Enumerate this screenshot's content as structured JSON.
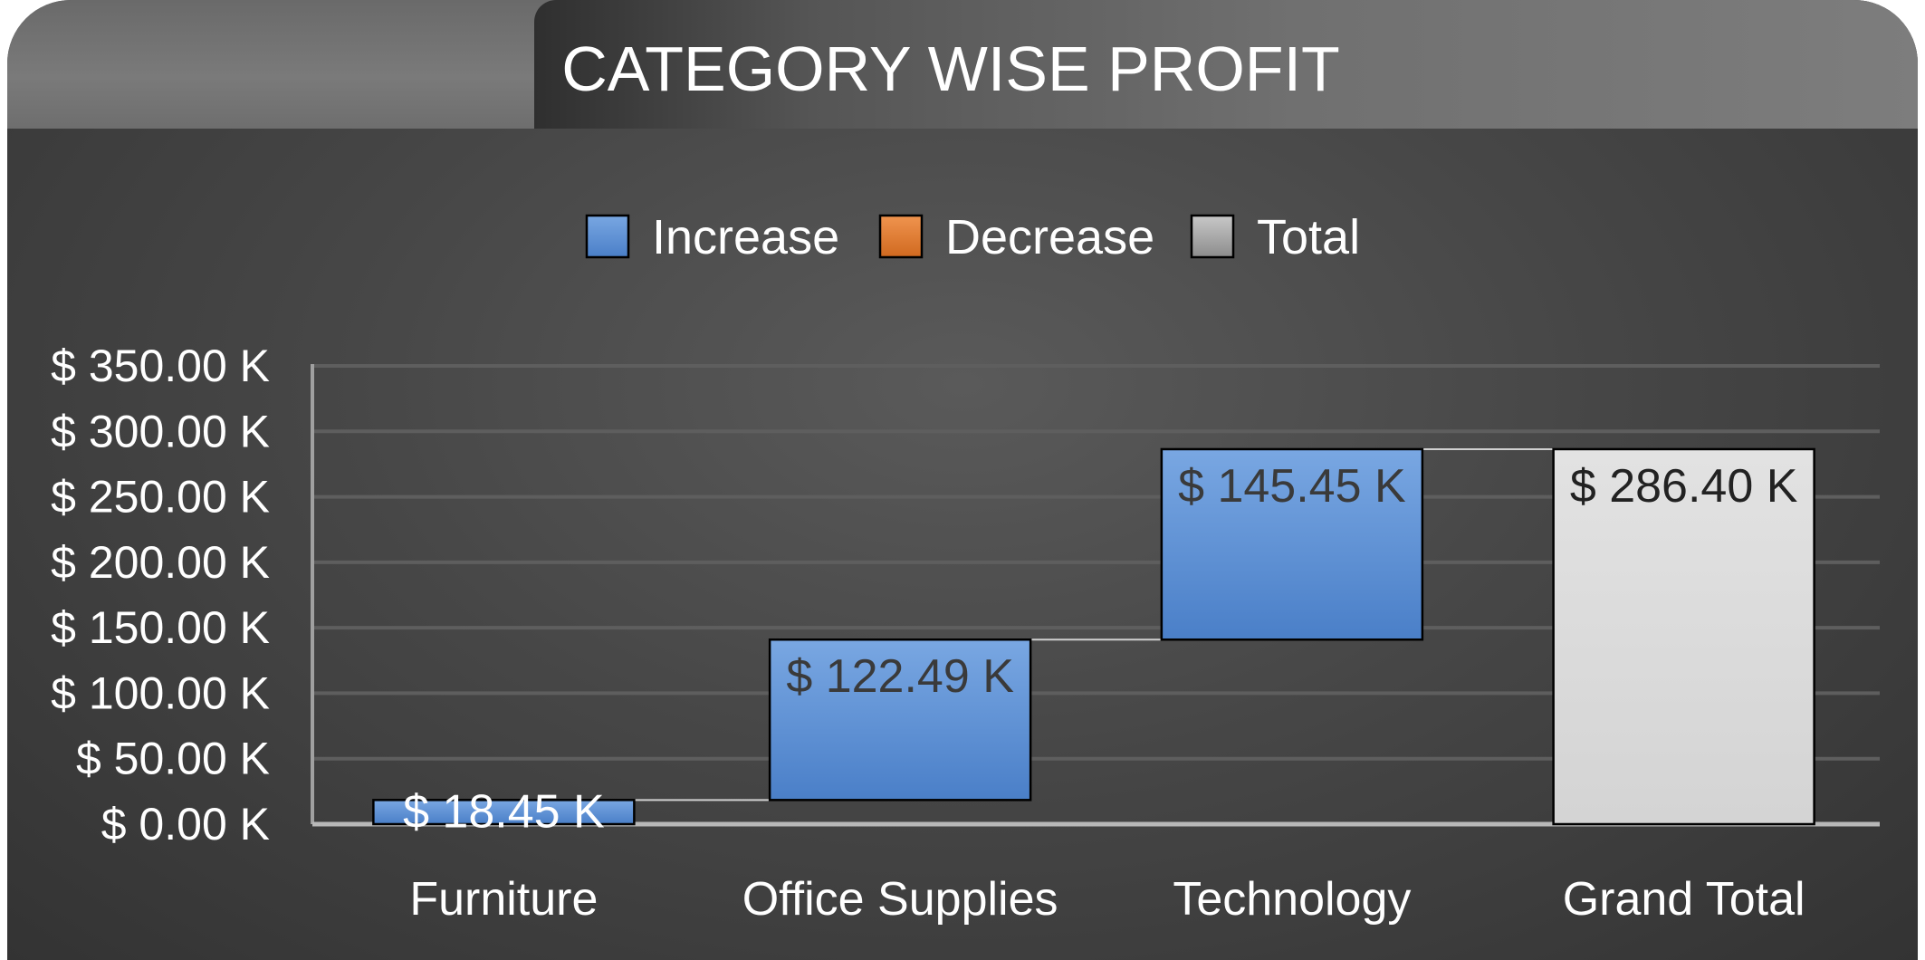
{
  "chart_data": {
    "type": "waterfall",
    "title": "CATEGORY WISE PROFIT",
    "legend": {
      "position": "top",
      "entries": [
        {
          "name": "Increase",
          "color": "#5b8fd6"
        },
        {
          "name": "Decrease",
          "color": "#e07a32"
        },
        {
          "name": "Total",
          "color": "#a6a6a6"
        }
      ]
    },
    "categories": [
      "Furniture",
      "Office Supplies",
      "Technology",
      "Grand Total"
    ],
    "values": [
      18.45,
      122.49,
      145.45,
      286.4
    ],
    "kinds": [
      "increase",
      "increase",
      "increase",
      "total"
    ],
    "data_labels": [
      "$ 18.45 K",
      "$ 122.49 K",
      "$ 145.45 K",
      "$ 286.40 K"
    ],
    "y_ticks": [
      0,
      50,
      100,
      150,
      200,
      250,
      300,
      350
    ],
    "y_tick_labels": [
      "$ 0.00 K",
      "$ 50.00 K",
      "$ 100.00 K",
      "$ 150.00 K",
      "$ 200.00 K",
      "$ 250.00 K",
      "$ 300.00 K",
      "$ 350.00 K"
    ],
    "ylim": [
      0,
      350
    ],
    "grid": true,
    "colors": {
      "increase": "#5b8fd6",
      "decrease": "#e07a32",
      "total": "#d9d9d9"
    }
  }
}
